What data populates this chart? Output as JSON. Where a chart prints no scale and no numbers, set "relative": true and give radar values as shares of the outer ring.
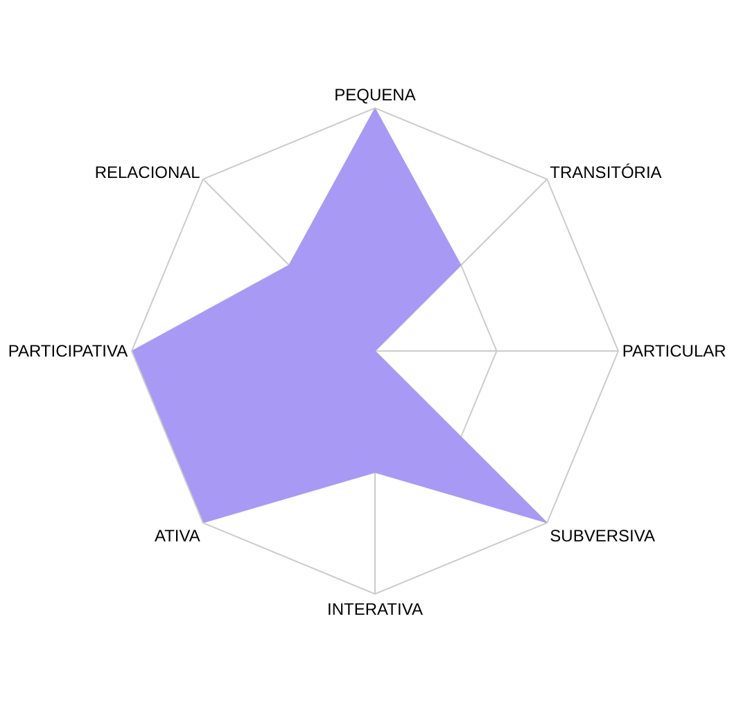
{
  "chart_data": {
    "type": "radar",
    "relative": true,
    "categories": [
      "PEQUENA",
      "TRANSITÓRIA",
      "PARTICULAR",
      "SUBVERSIVA",
      "INTERATIVA",
      "ATIVA",
      "PARTICIPATIVA",
      "RELACIONAL"
    ],
    "series": [
      {
        "color": "#a899f5",
        "values": [
          1,
          0.5,
          0,
          1,
          0.5,
          1,
          1,
          0.5
        ]
      }
    ],
    "grid": true
  }
}
